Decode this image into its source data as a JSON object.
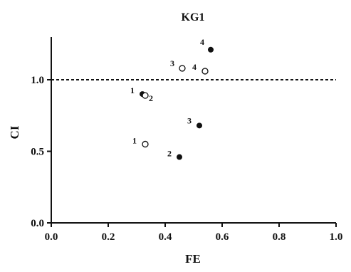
{
  "chart_data": {
    "type": "scatter",
    "title": "KG1",
    "xlabel": "FE",
    "ylabel": "CI",
    "xlim": [
      0.0,
      1.0
    ],
    "ylim": [
      0.0,
      1.3
    ],
    "xticks": [
      "0.0",
      "0.2",
      "0.4",
      "0.6",
      "0.8",
      "1.0"
    ],
    "yticks": [
      "0.0",
      "0.5",
      "1.0"
    ],
    "grid": false,
    "reference_line": {
      "y": 1.0,
      "style": "dashed"
    },
    "series": [
      {
        "marker": "filled-circle",
        "points": [
          {
            "label": "1",
            "x": 0.32,
            "y": 0.9
          },
          {
            "label": "2",
            "x": 0.45,
            "y": 0.46
          },
          {
            "label": "3",
            "x": 0.52,
            "y": 0.68
          },
          {
            "label": "4",
            "x": 0.56,
            "y": 1.21
          }
        ]
      },
      {
        "marker": "open-circle",
        "points": [
          {
            "label": "1",
            "x": 0.33,
            "y": 0.55
          },
          {
            "label": "2",
            "x": 0.33,
            "y": 0.89
          },
          {
            "label": "3",
            "x": 0.46,
            "y": 1.08
          },
          {
            "label": "4",
            "x": 0.54,
            "y": 1.06
          }
        ]
      }
    ],
    "colors": {
      "marker": "#111111",
      "axis": "#111111",
      "background": "#ffffff"
    }
  }
}
